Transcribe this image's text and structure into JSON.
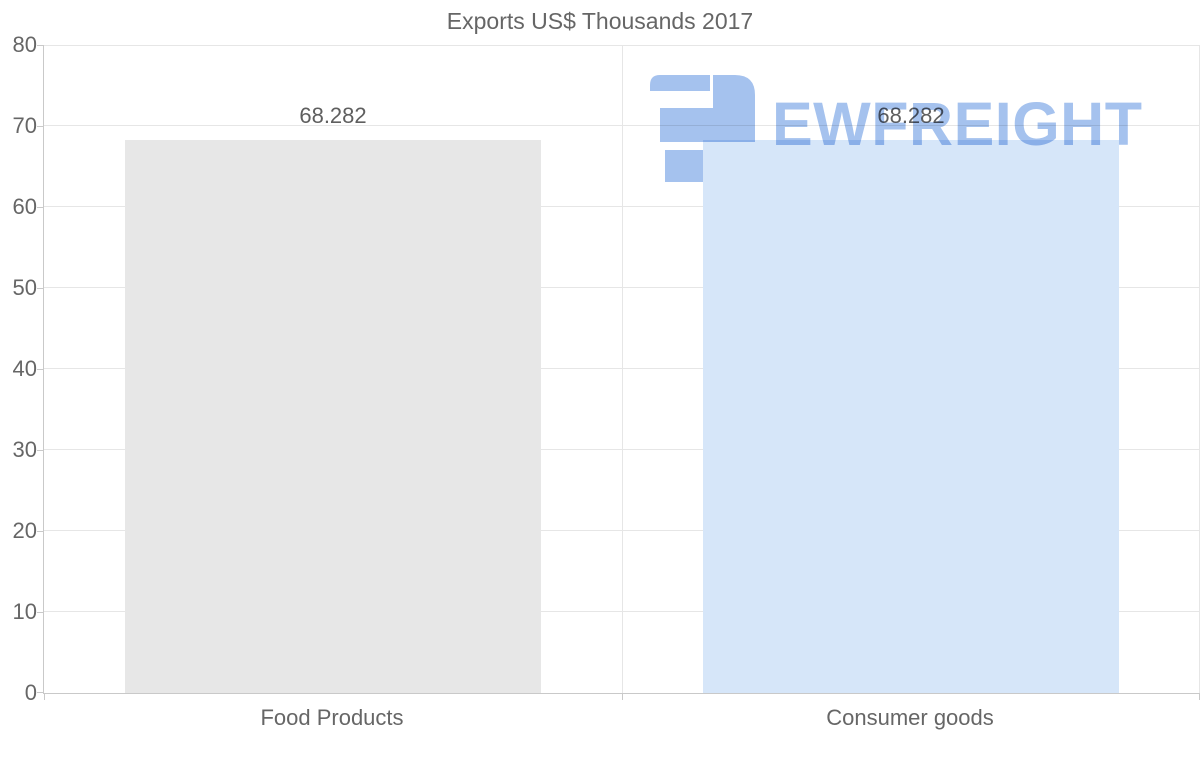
{
  "chart_data": {
    "type": "bar",
    "title": "Exports US$ Thousands 2017",
    "categories": [
      "Food Products",
      "Consumer goods"
    ],
    "values": [
      68.282,
      68.282
    ],
    "data_labels": [
      "68.282",
      "68.282"
    ],
    "xlabel": "",
    "ylabel": "",
    "ylim": [
      0,
      80
    ],
    "ytick_labels": [
      "0",
      "10",
      "20",
      "30",
      "40",
      "50",
      "60",
      "70",
      "80"
    ],
    "grid": "horizontal gridlines at every 10, vertical gridlines at category boundaries",
    "legend_position": "none",
    "bar_colors": [
      "#e7e7e7",
      "#d6e6f9"
    ]
  },
  "watermark": {
    "text": "EWFREIGHT",
    "logo_icon": "ewfreight-logo",
    "color": "#a5c2ee"
  },
  "colors": {
    "title_text": "#666666",
    "axis_tick_label": "#666666",
    "data_label": "#5f5f5f",
    "category_label": "#666666",
    "gridline": "#e6e6e6",
    "axis_line": "#c9c9c9",
    "background": "#ffffff"
  }
}
